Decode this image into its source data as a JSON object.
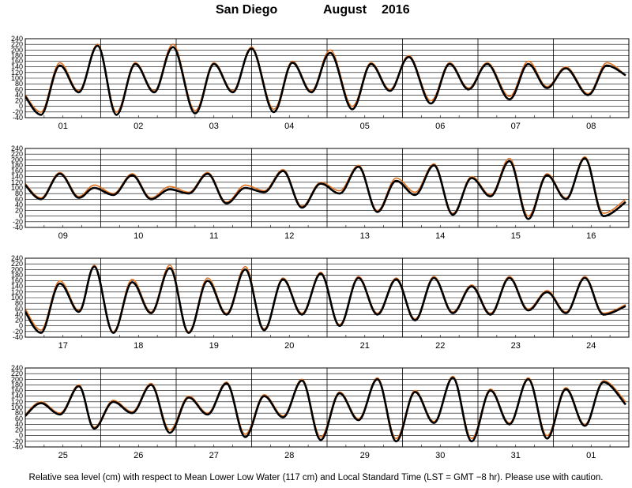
{
  "title": {
    "station": "San Diego",
    "month": "August",
    "year": "2016"
  },
  "footer": "Relative sea level (cm) with respect to Mean Lower Low Water (117 cm) and Local Standard Time (LST = GMT −8 hr). Please use with caution.",
  "colors": {
    "predicted": "#e07020",
    "observed": "#000000",
    "grid": "#000000",
    "frame": "#000000"
  },
  "chart_data": [
    {
      "type": "line",
      "ylim": [
        -40,
        240
      ],
      "yticks": [
        -40,
        -20,
        0,
        20,
        40,
        60,
        80,
        100,
        120,
        140,
        160,
        180,
        200,
        220,
        240
      ],
      "hours_per_day": 24,
      "days": [
        "01",
        "02",
        "03",
        "04",
        "05",
        "06",
        "07",
        "08"
      ],
      "series": [
        {
          "color": "#e07020",
          "x_hours": [
            0,
            5,
            11,
            17,
            23,
            29,
            35,
            41,
            47,
            54,
            60,
            66,
            72,
            79,
            85,
            91,
            97,
            104,
            110,
            116,
            122,
            129,
            135,
            141,
            147,
            154,
            160,
            166,
            172,
            179,
            185,
            191
          ],
          "y": [
            40,
            -20,
            155,
            55,
            220,
            -20,
            155,
            55,
            220,
            -15,
            155,
            55,
            210,
            -10,
            160,
            55,
            200,
            0,
            155,
            60,
            180,
            20,
            155,
            65,
            155,
            35,
            160,
            70,
            140,
            45,
            155,
            110
          ]
        },
        {
          "color": "#000000",
          "x_hours": [
            0,
            5,
            11,
            17,
            23,
            29,
            35,
            41,
            47,
            54,
            60,
            66,
            72,
            79,
            85,
            91,
            97,
            104,
            110,
            116,
            122,
            129,
            135,
            141,
            147,
            154,
            160,
            166,
            172,
            179,
            185,
            191
          ],
          "y": [
            35,
            -30,
            145,
            50,
            215,
            -30,
            150,
            50,
            210,
            -25,
            150,
            50,
            205,
            -20,
            155,
            50,
            190,
            -10,
            150,
            55,
            175,
            10,
            150,
            60,
            150,
            25,
            150,
            65,
            135,
            40,
            145,
            110
          ]
        }
      ]
    },
    {
      "type": "line",
      "ylim": [
        -40,
        240
      ],
      "yticks": [
        -40,
        -20,
        0,
        20,
        40,
        60,
        80,
        100,
        120,
        140,
        160,
        180,
        200,
        220,
        240
      ],
      "hours_per_day": 24,
      "days": [
        "09",
        "10",
        "11",
        "12",
        "13",
        "14",
        "15",
        "16"
      ],
      "series": [
        {
          "color": "#e07020",
          "x_hours": [
            0,
            5,
            11,
            17,
            22,
            28,
            34,
            40,
            46,
            52,
            58,
            64,
            70,
            76,
            82,
            88,
            94,
            100,
            106,
            112,
            118,
            124,
            130,
            136,
            142,
            148,
            154,
            160,
            166,
            172,
            178,
            184,
            191
          ],
          "y": [
            115,
            65,
            155,
            70,
            110,
            80,
            150,
            65,
            105,
            85,
            155,
            50,
            110,
            90,
            165,
            35,
            120,
            90,
            180,
            20,
            135,
            85,
            185,
            10,
            140,
            75,
            205,
            0,
            150,
            65,
            210,
            10,
            60
          ]
        },
        {
          "color": "#000000",
          "x_hours": [
            0,
            5,
            11,
            17,
            22,
            28,
            34,
            40,
            46,
            52,
            58,
            64,
            70,
            76,
            82,
            88,
            94,
            100,
            106,
            112,
            118,
            124,
            130,
            136,
            142,
            148,
            154,
            160,
            166,
            172,
            178,
            184,
            191
          ],
          "y": [
            110,
            60,
            150,
            65,
            100,
            75,
            145,
            60,
            95,
            80,
            150,
            45,
            100,
            85,
            160,
            30,
            115,
            80,
            175,
            15,
            125,
            75,
            180,
            5,
            135,
            70,
            195,
            -10,
            145,
            60,
            205,
            0,
            50
          ]
        }
      ]
    },
    {
      "type": "line",
      "ylim": [
        -40,
        240
      ],
      "yticks": [
        -40,
        -20,
        0,
        20,
        40,
        60,
        80,
        100,
        120,
        140,
        160,
        180,
        200,
        220,
        240
      ],
      "hours_per_day": 24,
      "days": [
        "17",
        "18",
        "19",
        "20",
        "21",
        "22",
        "23",
        "24"
      ],
      "series": [
        {
          "color": "#e07020",
          "x_hours": [
            0,
            5,
            11,
            17,
            22,
            28,
            34,
            40,
            46,
            52,
            58,
            64,
            70,
            76,
            82,
            88,
            94,
            100,
            106,
            112,
            118,
            124,
            130,
            136,
            142,
            148,
            154,
            160,
            166,
            172,
            178,
            184,
            191
          ],
          "y": [
            60,
            -15,
            160,
            55,
            215,
            -20,
            165,
            50,
            215,
            -20,
            170,
            45,
            210,
            -10,
            170,
            45,
            190,
            5,
            175,
            45,
            170,
            25,
            175,
            50,
            145,
            45,
            175,
            60,
            125,
            50,
            175,
            45,
            75
          ]
        },
        {
          "color": "#000000",
          "x_hours": [
            0,
            5,
            11,
            17,
            22,
            28,
            34,
            40,
            46,
            52,
            58,
            64,
            70,
            76,
            82,
            88,
            94,
            100,
            106,
            112,
            118,
            124,
            130,
            136,
            142,
            148,
            154,
            160,
            166,
            172,
            178,
            184,
            191
          ],
          "y": [
            50,
            -25,
            150,
            50,
            210,
            -25,
            155,
            45,
            205,
            -25,
            160,
            40,
            200,
            -15,
            165,
            40,
            185,
            0,
            170,
            40,
            165,
            20,
            170,
            45,
            140,
            40,
            170,
            55,
            120,
            45,
            170,
            40,
            70
          ]
        }
      ]
    },
    {
      "type": "line",
      "ylim": [
        -40,
        240
      ],
      "yticks": [
        -40,
        -20,
        0,
        20,
        40,
        60,
        80,
        100,
        120,
        140,
        160,
        180,
        200,
        220,
        240
      ],
      "hours_per_day": 24,
      "days": [
        "25",
        "26",
        "27",
        "28",
        "29",
        "30",
        "31",
        "01"
      ],
      "series": [
        {
          "color": "#e07020",
          "x_hours": [
            0,
            5,
            11,
            17,
            22,
            28,
            34,
            40,
            46,
            52,
            58,
            64,
            70,
            76,
            82,
            88,
            94,
            100,
            106,
            112,
            118,
            124,
            130,
            136,
            142,
            148,
            154,
            160,
            166,
            172,
            178,
            184,
            191
          ],
          "y": [
            75,
            120,
            80,
            180,
            30,
            125,
            85,
            185,
            20,
            140,
            80,
            190,
            5,
            145,
            70,
            200,
            -5,
            155,
            60,
            205,
            -10,
            160,
            50,
            210,
            -10,
            165,
            45,
            205,
            0,
            170,
            40,
            195,
            120
          ]
        },
        {
          "color": "#000000",
          "x_hours": [
            0,
            5,
            11,
            17,
            22,
            28,
            34,
            40,
            46,
            52,
            58,
            64,
            70,
            76,
            82,
            88,
            94,
            100,
            106,
            112,
            118,
            124,
            130,
            136,
            142,
            148,
            154,
            160,
            166,
            172,
            178,
            184,
            191
          ],
          "y": [
            70,
            115,
            75,
            175,
            25,
            120,
            80,
            180,
            10,
            135,
            75,
            185,
            -5,
            140,
            65,
            195,
            -15,
            150,
            55,
            200,
            -20,
            155,
            45,
            205,
            -20,
            160,
            40,
            200,
            -10,
            165,
            35,
            190,
            110
          ]
        }
      ]
    }
  ]
}
